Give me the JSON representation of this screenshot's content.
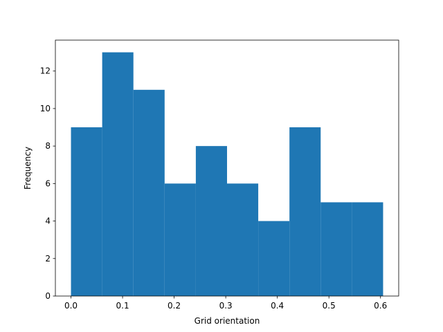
{
  "chart_data": {
    "type": "histogram",
    "xlabel": "Grid orientation",
    "ylabel": "Frequency",
    "bins": [
      0,
      0.0605,
      0.121,
      0.1815,
      0.242,
      0.3025,
      0.363,
      0.4235,
      0.484,
      0.5445,
      0.605
    ],
    "values": [
      9,
      13,
      11,
      6,
      8,
      6,
      4,
      9,
      5,
      5
    ],
    "color": "#1f77b4",
    "xlim": [
      -0.03025,
      0.63525
    ],
    "xticks": [
      {
        "value": 0,
        "label": "0.0"
      },
      0.1,
      0.2,
      0.3,
      0.4,
      0.5,
      0.6
    ],
    "ylim": [
      0,
      13.65
    ],
    "yticks": [
      0,
      2,
      4,
      6,
      8,
      10,
      12
    ],
    "grid": false
  }
}
